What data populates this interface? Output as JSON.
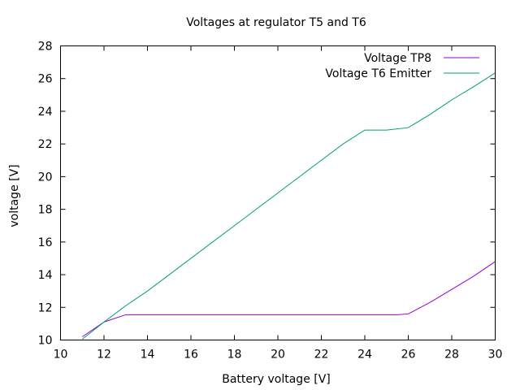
{
  "chart_data": {
    "type": "line",
    "title": "Voltages at regulator T5 and T6",
    "xlabel": "Battery voltage [V]",
    "ylabel": "voltage [V]",
    "xlim": [
      10,
      30
    ],
    "ylim": [
      10,
      28
    ],
    "xticks": [
      10,
      12,
      14,
      16,
      18,
      20,
      22,
      24,
      26,
      28,
      30
    ],
    "yticks": [
      10,
      12,
      14,
      16,
      18,
      20,
      22,
      24,
      26,
      28
    ],
    "grid": false,
    "legend_position": "top-right",
    "series": [
      {
        "name": "Voltage TP8",
        "color": "#9400d3",
        "points": [
          [
            11,
            10.2
          ],
          [
            12,
            11.1
          ],
          [
            13,
            11.55
          ],
          [
            14,
            11.55
          ],
          [
            20,
            11.55
          ],
          [
            24,
            11.55
          ],
          [
            25.5,
            11.55
          ],
          [
            26,
            11.6
          ],
          [
            27,
            12.3
          ],
          [
            28,
            13.1
          ],
          [
            29,
            13.9
          ],
          [
            30,
            14.8
          ]
        ]
      },
      {
        "name": "Voltage T6 Emitter",
        "color": "#009e73",
        "points": [
          [
            11,
            10.05
          ],
          [
            12,
            11.1
          ],
          [
            13,
            12.1
          ],
          [
            14,
            13.0
          ],
          [
            15,
            14.0
          ],
          [
            16,
            15.0
          ],
          [
            17,
            16.0
          ],
          [
            18,
            17.0
          ],
          [
            19,
            18.0
          ],
          [
            20,
            19.0
          ],
          [
            21,
            20.0
          ],
          [
            22,
            21.0
          ],
          [
            23,
            22.0
          ],
          [
            24,
            22.85
          ],
          [
            25,
            22.85
          ],
          [
            26,
            23.0
          ],
          [
            27,
            23.8
          ],
          [
            28,
            24.7
          ],
          [
            29,
            25.5
          ],
          [
            30,
            26.35
          ]
        ]
      }
    ]
  }
}
